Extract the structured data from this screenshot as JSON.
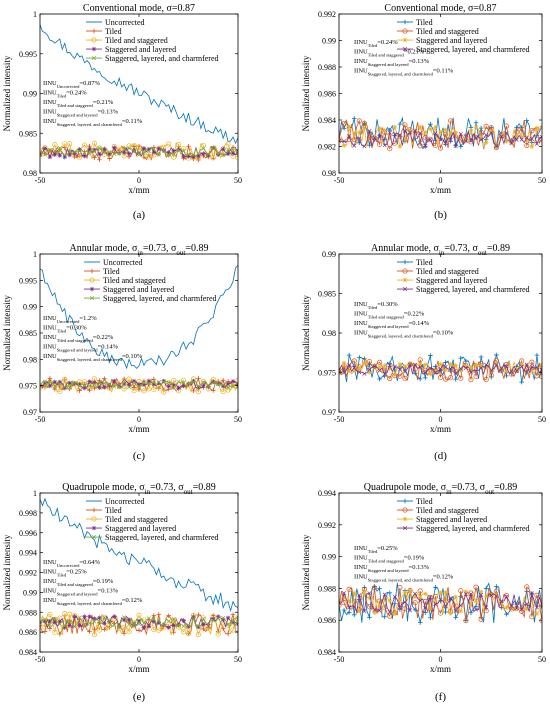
{
  "colors": {
    "uncorrected": "#0072BD",
    "tiled": "#D95319",
    "tiled_staggered": "#EDB120",
    "staggered_layered": "#7E2F8E",
    "chamfered": "#77AC30"
  },
  "chart_data": [
    {
      "id": "a",
      "type": "line",
      "caption": "(a)",
      "title": "Conventional mode, σ=0.87",
      "title_parts": [
        {
          "t": "Conventional mode, σ=0.87"
        }
      ],
      "xlabel": "x/mm",
      "ylabel": "Normalized intensity",
      "xlim": [
        -50,
        50
      ],
      "ylim": [
        0.98,
        1.0
      ],
      "xticks": [
        -50,
        0,
        50
      ],
      "yticks": [
        0.98,
        0.985,
        0.99,
        0.995,
        1.0
      ],
      "ytick_labels": [
        "0.98",
        "0.985",
        "0.99",
        "0.995",
        "1"
      ],
      "legend_position": "top-right",
      "series": [
        {
          "name": "Uncorrected",
          "key": "uncorrected",
          "marker": "none",
          "profile": "decline",
          "base": 0.983,
          "amp": 0.0003,
          "start": 0.999,
          "end": 0.984
        },
        {
          "name": "Tiled",
          "key": "tiled",
          "marker": "plus",
          "profile": "flat",
          "base": 0.9825,
          "amp": 0.0009
        },
        {
          "name": "Tiled and staggered",
          "key": "tiled_staggered",
          "marker": "circle",
          "profile": "flat",
          "base": 0.9828,
          "amp": 0.001
        },
        {
          "name": "Staggered and layered",
          "key": "staggered_layered",
          "marker": "star",
          "profile": "flat",
          "base": 0.9826,
          "amp": 0.0006
        },
        {
          "name": "Staggered, layered, and charmfered",
          "key": "chamfered",
          "marker": "x",
          "profile": "flat",
          "base": 0.9827,
          "amp": 0.0005
        }
      ],
      "notes": [
        {
          "main": "IINU",
          "sub": "Uncorrected",
          "value": "=0.87%"
        },
        {
          "main": "IINU",
          "sub": "Tiled",
          "value": "=0.24%"
        },
        {
          "main": "IINU",
          "sub": "Tiled and staggered",
          "value": "=0.21%"
        },
        {
          "main": "IINU",
          "sub": "Staggered and layered",
          "value": "=0.13%"
        },
        {
          "main": "IINU",
          "sub": "Staggered, layered, and charmfered",
          "value": "=0.11%"
        }
      ]
    },
    {
      "id": "b",
      "type": "line",
      "caption": "(b)",
      "title": "Conventional mode, σ=0.87",
      "title_parts": [
        {
          "t": "Conventional mode, σ=0.87"
        }
      ],
      "xlabel": "x/mm",
      "ylabel": "Normalized intensity",
      "xlim": [
        -50,
        50
      ],
      "ylim": [
        0.98,
        0.992
      ],
      "xticks": [
        -50,
        0,
        50
      ],
      "yticks": [
        0.98,
        0.982,
        0.984,
        0.986,
        0.988,
        0.99,
        0.992
      ],
      "ytick_labels": [
        "0.98",
        "0.982",
        "0.984",
        "0.986",
        "0.988",
        "0.99",
        "0.992"
      ],
      "legend_position": "top-right",
      "series": [
        {
          "name": "Tiled",
          "key": "uncorrected",
          "marker": "plus",
          "profile": "flat",
          "base": 0.983,
          "amp": 0.0012
        },
        {
          "name": "Tiled and staggered",
          "key": "tiled",
          "marker": "circle",
          "profile": "flat",
          "base": 0.9829,
          "amp": 0.0011
        },
        {
          "name": "Staggered and layered",
          "key": "tiled_staggered",
          "marker": "star",
          "profile": "flat",
          "base": 0.9827,
          "amp": 0.0008
        },
        {
          "name": "Staggered, layered, and charmfered",
          "key": "staggered_layered",
          "marker": "x",
          "profile": "flat",
          "base": 0.9826,
          "amp": 0.0006
        }
      ],
      "notes": [
        {
          "main": "IINU",
          "sub": "Tiled",
          "value": "=0.24%"
        },
        {
          "main": "IINU",
          "sub": "Tiled and staggered",
          "value": "=0.21%"
        },
        {
          "main": "IINU",
          "sub": "Staggered and layered",
          "value": "=0.13%"
        },
        {
          "main": "IINU",
          "sub": "Staggered, layered, and charmfered",
          "value": "=0.11%"
        }
      ]
    },
    {
      "id": "c",
      "type": "line",
      "caption": "(c)",
      "title": "Annular mode, σin=0.73, σout=0.89",
      "title_parts": [
        {
          "t": "Annular mode, σ"
        },
        {
          "t": "in",
          "sub": true
        },
        {
          "t": "=0.73, σ"
        },
        {
          "t": "out",
          "sub": true
        },
        {
          "t": "=0.89"
        }
      ],
      "xlabel": "x/mm",
      "ylabel": "Normalized intensity",
      "xlim": [
        -50,
        50
      ],
      "ylim": [
        0.97,
        1.0
      ],
      "xticks": [
        -50,
        0,
        50
      ],
      "yticks": [
        0.97,
        0.975,
        0.98,
        0.985,
        0.99,
        0.995,
        1.0
      ],
      "ytick_labels": [
        "0.97",
        "0.975",
        "0.98",
        "0.985",
        "0.99",
        "0.995",
        "1"
      ],
      "legend_position": "top-center",
      "series": [
        {
          "name": "Uncorrected",
          "key": "uncorrected",
          "marker": "none",
          "profile": "valley",
          "base": 0.9755,
          "amp": 0.0004,
          "edge": 0.9975,
          "mid": 0.979
        },
        {
          "name": "Tiled",
          "key": "tiled",
          "marker": "plus",
          "profile": "flat",
          "base": 0.9752,
          "amp": 0.0012
        },
        {
          "name": "Tiled and staggered",
          "key": "tiled_staggered",
          "marker": "circle",
          "profile": "flat",
          "base": 0.975,
          "amp": 0.0013
        },
        {
          "name": "Staggered and layered",
          "key": "staggered_layered",
          "marker": "star",
          "profile": "flat",
          "base": 0.9752,
          "amp": 0.0007
        },
        {
          "name": "Staggered, layered, and charmfered",
          "key": "chamfered",
          "marker": "x",
          "profile": "flat",
          "base": 0.9752,
          "amp": 0.0006
        }
      ],
      "notes": [
        {
          "main": "IINU",
          "sub": "Uncorrected",
          "value": "=1.2%"
        },
        {
          "main": "IINU",
          "sub": "Tiled",
          "value": "=0.30%"
        },
        {
          "main": "IINU",
          "sub": "Tiled and staggered",
          "value": "=0.22%"
        },
        {
          "main": "IINU",
          "sub": "Staggered and layered",
          "value": "=0.14%"
        },
        {
          "main": "IINU",
          "sub": "Staggered, layered, and charmfered",
          "value": "=0.10%"
        }
      ]
    },
    {
      "id": "d",
      "type": "line",
      "caption": "(d)",
      "title": "Annular mode, σin=0.73, σout=0.89",
      "title_parts": [
        {
          "t": "Annular mode, σ"
        },
        {
          "t": "in",
          "sub": true
        },
        {
          "t": "=0.73, σ"
        },
        {
          "t": "out",
          "sub": true
        },
        {
          "t": "=0.89"
        }
      ],
      "xlabel": "x/mm",
      "ylabel": "Normalized intensity",
      "xlim": [
        -50,
        50
      ],
      "ylim": [
        0.97,
        0.99
      ],
      "xticks": [
        -50,
        0,
        50
      ],
      "yticks": [
        0.97,
        0.975,
        0.98,
        0.985,
        0.99
      ],
      "ytick_labels": [
        "0.97",
        "0.975",
        "0.98",
        "0.985",
        "0.99"
      ],
      "legend_position": "top-right",
      "series": [
        {
          "name": "Tiled",
          "key": "uncorrected",
          "marker": "plus",
          "profile": "flat",
          "base": 0.9755,
          "amp": 0.0018
        },
        {
          "name": "Tiled and staggered",
          "key": "tiled",
          "marker": "circle",
          "profile": "flat",
          "base": 0.9753,
          "amp": 0.0013
        },
        {
          "name": "Staggered and layered",
          "key": "tiled_staggered",
          "marker": "star",
          "profile": "flat",
          "base": 0.9755,
          "amp": 0.0008
        },
        {
          "name": "Staggered, layered, and charmfered",
          "key": "staggered_layered",
          "marker": "x",
          "profile": "flat",
          "base": 0.9754,
          "amp": 0.0006
        }
      ],
      "notes": [
        {
          "main": "IINU",
          "sub": "Tiled",
          "value": "=0.30%"
        },
        {
          "main": "IINU",
          "sub": "Tiled and staggered",
          "value": "=0.22%"
        },
        {
          "main": "IINU",
          "sub": "Staggered and layered",
          "value": "=0.14%"
        },
        {
          "main": "IINU",
          "sub": "Staggered, layered, and charmfered",
          "value": "=0.10%"
        }
      ]
    },
    {
      "id": "e",
      "type": "line",
      "caption": "(e)",
      "title": "Quadrupole mode, σin=0.73, σout=0.89",
      "title_parts": [
        {
          "t": "Quadrupole mode, σ"
        },
        {
          "t": "in",
          "sub": true
        },
        {
          "t": "=0.73, σ"
        },
        {
          "t": "out",
          "sub": true
        },
        {
          "t": "=0.89"
        }
      ],
      "xlabel": "x/mm",
      "ylabel": "Normalized intensity",
      "xlim": [
        -50,
        50
      ],
      "ylim": [
        0.984,
        1.0
      ],
      "xticks": [
        -50,
        0,
        50
      ],
      "yticks": [
        0.984,
        0.986,
        0.988,
        0.99,
        0.992,
        0.994,
        0.996,
        0.998,
        1.0
      ],
      "ytick_labels": [
        "0.984",
        "0.986",
        "0.988",
        "0.99",
        "0.992",
        "0.994",
        "0.996",
        "0.998",
        "1"
      ],
      "legend_position": "top-right",
      "series": [
        {
          "name": "Uncorrected",
          "key": "uncorrected",
          "marker": "none",
          "profile": "decline",
          "base": 0.9875,
          "amp": 0.0003,
          "start": 0.9995,
          "end": 0.9885
        },
        {
          "name": "Tiled",
          "key": "tiled",
          "marker": "plus",
          "profile": "flat",
          "base": 0.9868,
          "amp": 0.001
        },
        {
          "name": "Tiled and staggered",
          "key": "tiled_staggered",
          "marker": "circle",
          "profile": "flat",
          "base": 0.9868,
          "amp": 0.0011
        },
        {
          "name": "Staggered and layered",
          "key": "staggered_layered",
          "marker": "star",
          "profile": "flat",
          "base": 0.987,
          "amp": 0.0006
        },
        {
          "name": "Staggered, layered, and charmfered",
          "key": "chamfered",
          "marker": "x",
          "profile": "flat",
          "base": 0.987,
          "amp": 0.0005
        }
      ],
      "notes": [
        {
          "main": "IINU",
          "sub": "Uncorrected",
          "value": "=0.64%"
        },
        {
          "main": "IINU",
          "sub": "Tiled",
          "value": "=0.25%"
        },
        {
          "main": "IINU",
          "sub": "Tiled and staggered",
          "value": "=0.19%"
        },
        {
          "main": "IINU",
          "sub": "Staggered and layered",
          "value": "=0.13%"
        },
        {
          "main": "IINU",
          "sub": "Staggered, layered, and charmfered",
          "value": "=0.12%"
        }
      ]
    },
    {
      "id": "f",
      "type": "line",
      "caption": "(f)",
      "title": "Quadrupole mode, σin=0.73, σout=0.89",
      "title_parts": [
        {
          "t": "Quadrupole mode, σ"
        },
        {
          "t": "in",
          "sub": true
        },
        {
          "t": "=0.73, σ"
        },
        {
          "t": "out",
          "sub": true
        },
        {
          "t": "=0.89"
        }
      ],
      "xlabel": "x/mm",
      "ylabel": "Normalized intensity",
      "xlim": [
        -50,
        50
      ],
      "ylim": [
        0.984,
        0.994
      ],
      "xticks": [
        -50,
        0,
        50
      ],
      "yticks": [
        0.984,
        0.986,
        0.988,
        0.99,
        0.992,
        0.994
      ],
      "ytick_labels": [
        "0.984",
        "0.986",
        "0.988",
        "0.99",
        "0.992",
        "0.994"
      ],
      "legend_position": "top-right",
      "series": [
        {
          "name": "Tiled",
          "key": "uncorrected",
          "marker": "plus",
          "profile": "flat",
          "base": 0.9871,
          "amp": 0.0013
        },
        {
          "name": "Tiled and staggered",
          "key": "tiled",
          "marker": "circle",
          "profile": "flat",
          "base": 0.987,
          "amp": 0.0011
        },
        {
          "name": "Staggered and layered",
          "key": "tiled_staggered",
          "marker": "star",
          "profile": "flat",
          "base": 0.9871,
          "amp": 0.0007
        },
        {
          "name": "Staggered, layered, and charmfered",
          "key": "staggered_layered",
          "marker": "x",
          "profile": "flat",
          "base": 0.9871,
          "amp": 0.0006
        }
      ],
      "notes": [
        {
          "main": "IINU",
          "sub": "Tiled",
          "value": "=0.25%"
        },
        {
          "main": "IINU",
          "sub": "Tiled and staggered",
          "value": "=0.19%"
        },
        {
          "main": "IINU",
          "sub": "Staggered and layered",
          "value": "=0.13%"
        },
        {
          "main": "IINU",
          "sub": "Staggered, layered, and charmfered",
          "value": "=0.12%"
        }
      ]
    }
  ]
}
